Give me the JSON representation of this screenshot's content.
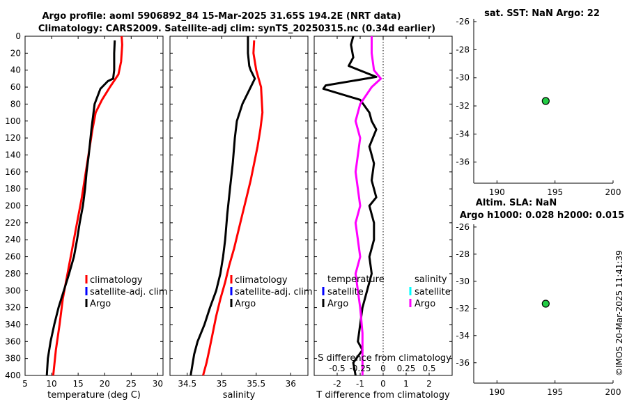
{
  "title": {
    "line1": "Argo profile: aoml 5906892_84 15-Mar-2025 31.65S 194.2E (NRT data)",
    "line2": "Climatology: CARS2009. Satellite-adj clim: synTS_20250315.nc (0.34d earlier)"
  },
  "timestamp": "©IMOS 20-Mar-2025 11:41:39",
  "colors": {
    "climatology": "#ff0000",
    "satellite": "#0000ff",
    "argo": "#000000",
    "sal_diff": "#ff00ff",
    "sal_sat": "#00ffff",
    "dot": "#22cc44"
  },
  "chart_data": [
    {
      "type": "line",
      "name": "temperature",
      "xlabel": "temperature (deg C)",
      "xlim": [
        5,
        31
      ],
      "xticks": [
        5,
        10,
        15,
        20,
        25,
        30
      ],
      "ylim": [
        400,
        0
      ],
      "yticks": [
        0,
        20,
        40,
        60,
        80,
        100,
        120,
        140,
        160,
        180,
        200,
        220,
        240,
        260,
        280,
        300,
        320,
        340,
        360,
        380,
        400
      ],
      "legend": [
        "climatology",
        "satellite-adj. clim",
        "Argo"
      ],
      "legend_position": "right",
      "series": [
        {
          "name": "climatology",
          "color": "#ff0000",
          "x": [
            23.2,
            23.3,
            23.1,
            22.6,
            21.0,
            19.5,
            18.3,
            17.7,
            17.2,
            16.7,
            16.2,
            15.7,
            15.1,
            14.5,
            13.9,
            13.3,
            12.7,
            12.1,
            11.5,
            10.8,
            10.3
          ],
          "depth": [
            0,
            10,
            30,
            45,
            60,
            75,
            90,
            110,
            130,
            150,
            170,
            190,
            210,
            230,
            250,
            270,
            290,
            310,
            340,
            370,
            400
          ]
        },
        {
          "name": "Argo",
          "color": "#000000",
          "x": [
            21.9,
            21.8,
            21.8,
            21.6,
            20.6,
            19.2,
            18.1,
            17.7,
            17.5,
            17.0,
            16.6,
            16.3,
            15.9,
            15.3,
            14.8,
            14.2,
            13.3,
            12.3,
            11.3,
            10.5,
            9.8,
            9.3,
            9.1
          ],
          "depth": [
            5,
            20,
            40,
            50,
            53,
            62,
            80,
            100,
            110,
            140,
            160,
            180,
            200,
            220,
            240,
            260,
            280,
            300,
            320,
            340,
            360,
            380,
            400
          ]
        }
      ]
    },
    {
      "type": "line",
      "name": "salinity",
      "xlabel": "salinity",
      "xlim": [
        34.25,
        36.25
      ],
      "xticks": [
        34.5,
        35,
        35.5,
        36
      ],
      "ylim": [
        400,
        0
      ],
      "legend": [
        "climatology",
        "satellite-adj. clim",
        "Argo"
      ],
      "legend_position": "right",
      "series": [
        {
          "name": "climatology",
          "color": "#ff0000",
          "x": [
            35.47,
            35.46,
            35.5,
            35.57,
            35.59,
            35.56,
            35.52,
            35.47,
            35.42,
            35.36,
            35.3,
            35.24,
            35.18,
            35.11,
            35.05,
            34.98,
            34.92,
            34.87,
            34.82,
            34.78,
            34.73
          ],
          "depth": [
            5,
            20,
            40,
            60,
            90,
            110,
            130,
            150,
            170,
            190,
            210,
            230,
            250,
            270,
            290,
            310,
            330,
            350,
            370,
            385,
            400
          ]
        },
        {
          "name": "Argo",
          "color": "#000000",
          "x": [
            35.38,
            35.38,
            35.4,
            35.42,
            35.48,
            35.39,
            35.3,
            35.22,
            35.19,
            35.16,
            35.12,
            35.08,
            35.05,
            35.02,
            34.98,
            34.92,
            34.83,
            34.75,
            34.65,
            34.6,
            34.57,
            34.55
          ],
          "depth": [
            0,
            20,
            35,
            40,
            50,
            65,
            80,
            100,
            120,
            150,
            180,
            210,
            240,
            260,
            280,
            300,
            320,
            340,
            360,
            375,
            390,
            400
          ]
        }
      ]
    },
    {
      "type": "line",
      "name": "difference",
      "xlabel": "T difference from climatology",
      "top_xlabel": "S difference from climatology",
      "xlim": [
        -3,
        3
      ],
      "xticks": [
        -2,
        -1,
        0,
        1,
        2
      ],
      "top_xticks": [
        "-0.5",
        "-0.25",
        "0",
        "0.25",
        "0.5"
      ],
      "ylim": [
        400,
        0
      ],
      "legend_temperature": {
        "title": "temperature",
        "items": [
          "satellite",
          "Argo"
        ]
      },
      "legend_salinity": {
        "title": "salinity",
        "items": [
          "satellite",
          "Argo"
        ]
      },
      "series": [
        {
          "name": "T difference (Argo)",
          "color": "#000000",
          "x": [
            -1.3,
            -1.4,
            -1.3,
            -1.5,
            -0.3,
            -2.5,
            -2.6,
            -1.0,
            -0.6,
            -0.5,
            -0.3,
            -0.6,
            -0.4,
            -0.5,
            -0.3,
            -0.6,
            -0.4,
            -0.4,
            -0.6,
            -0.5,
            -0.7,
            -0.9,
            -1.0,
            -1.1,
            -0.9,
            -1.3,
            -1.2
          ],
          "depth": [
            0,
            10,
            25,
            35,
            48,
            58,
            62,
            75,
            90,
            100,
            110,
            130,
            150,
            170,
            190,
            200,
            220,
            240,
            260,
            280,
            300,
            320,
            340,
            360,
            370,
            385,
            400
          ]
        },
        {
          "name": "S difference (Argo)",
          "color": "#ff00ff",
          "x": [
            -0.5,
            -0.5,
            -0.4,
            -0.1,
            -0.5,
            -1.0,
            -1.2,
            -1.0,
            -1.1,
            -1.2,
            -1.1,
            -1.0,
            -1.2,
            -1.1,
            -1.0,
            -1.2,
            -1.1,
            -1.0,
            -0.9,
            -0.9,
            -0.9
          ],
          "depth": [
            0,
            20,
            40,
            50,
            60,
            80,
            100,
            120,
            140,
            160,
            180,
            200,
            220,
            240,
            260,
            280,
            300,
            320,
            350,
            380,
            400
          ]
        }
      ]
    },
    {
      "type": "scatter",
      "name": "sat-sst-map",
      "title": "sat. SST: NaN Argo: 22",
      "xlim": [
        188,
        200
      ],
      "ylim": [
        -37.5,
        -25.8
      ],
      "xticks": [
        190,
        195,
        200
      ],
      "yticks": [
        -26,
        -28,
        -30,
        -32,
        -34,
        -36
      ],
      "points": [
        {
          "lon": 194.2,
          "lat": -31.65
        }
      ]
    },
    {
      "type": "scatter",
      "name": "altim-sla-map",
      "title_line1": "Altim. SLA: NaN",
      "title_line2": "Argo h1000: 0.028 h2000: 0.015",
      "xlim": [
        188,
        200
      ],
      "ylim": [
        -37.5,
        -25.8
      ],
      "xticks": [
        190,
        195,
        200
      ],
      "yticks": [
        -26,
        -28,
        -30,
        -32,
        -34,
        -36
      ],
      "points": [
        {
          "lon": 194.2,
          "lat": -31.65
        }
      ]
    }
  ]
}
